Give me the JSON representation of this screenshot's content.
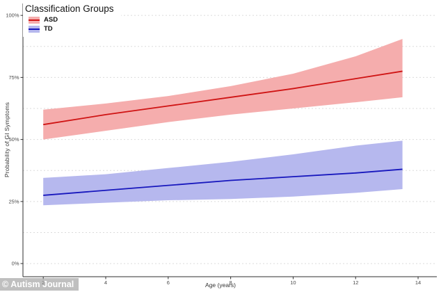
{
  "watermark": {
    "text": "© Autism Journal"
  },
  "legend": {
    "title": "Classification Groups",
    "items": [
      {
        "id": "asd",
        "label": "ASD",
        "line_color": "#cf1313",
        "fill_color": "#f5adad"
      },
      {
        "id": "td",
        "label": "TD",
        "line_color": "#1717bd",
        "fill_color": "#b6b8ee"
      }
    ]
  },
  "colors": {
    "gridline": "#dbdbdb",
    "axis_line": "#2e2e2e",
    "tick_label": "#4a4a4a"
  },
  "chart_data": {
    "type": "line",
    "title": "",
    "xlabel": "Age (years)",
    "ylabel": "Probability of GI Symptoms",
    "x_ticks": [
      2,
      4,
      6,
      8,
      10,
      12,
      14
    ],
    "x_tick_labels": [
      "2",
      "4",
      "6",
      "8",
      "10",
      "12",
      "14"
    ],
    "y_ticks": [
      0,
      25,
      50,
      75,
      100
    ],
    "y_tick_labels": [
      "0%",
      "25%",
      "50%",
      "75%",
      "100%"
    ],
    "y_minor_ticks": [
      12.5,
      37.5,
      62.5,
      87.5
    ],
    "xlim": [
      1.35,
      14.6
    ],
    "ylim_pct": [
      -5.3,
      104.8
    ],
    "grid": "horizontal-dashed",
    "legend_position": "inside-top-left",
    "x_units": "years",
    "y_units": "percent",
    "series": [
      {
        "name": "ASD",
        "x": [
          2,
          4,
          6,
          8,
          10,
          12,
          13.5
        ],
        "fit": [
          56,
          60,
          63.5,
          67,
          70.5,
          74.5,
          77.5
        ],
        "upper": [
          62,
          64.5,
          67.5,
          71.5,
          76.5,
          83.5,
          90.5
        ],
        "lower": [
          50,
          53.5,
          57,
          60,
          62.5,
          65,
          67
        ],
        "line_color": "#cf1313",
        "fill_color": "#f5adad"
      },
      {
        "name": "TD",
        "x": [
          2,
          4,
          6,
          8,
          10,
          12,
          13.5
        ],
        "fit": [
          27.5,
          29.5,
          31.5,
          33.5,
          35,
          36.5,
          38
        ],
        "upper": [
          34.5,
          36,
          38.5,
          41,
          44,
          47.5,
          49.5
        ],
        "lower": [
          23.5,
          24.5,
          25.5,
          26,
          27,
          28.5,
          30
        ],
        "line_color": "#1717bd",
        "fill_color": "#b6b8ee"
      }
    ]
  }
}
